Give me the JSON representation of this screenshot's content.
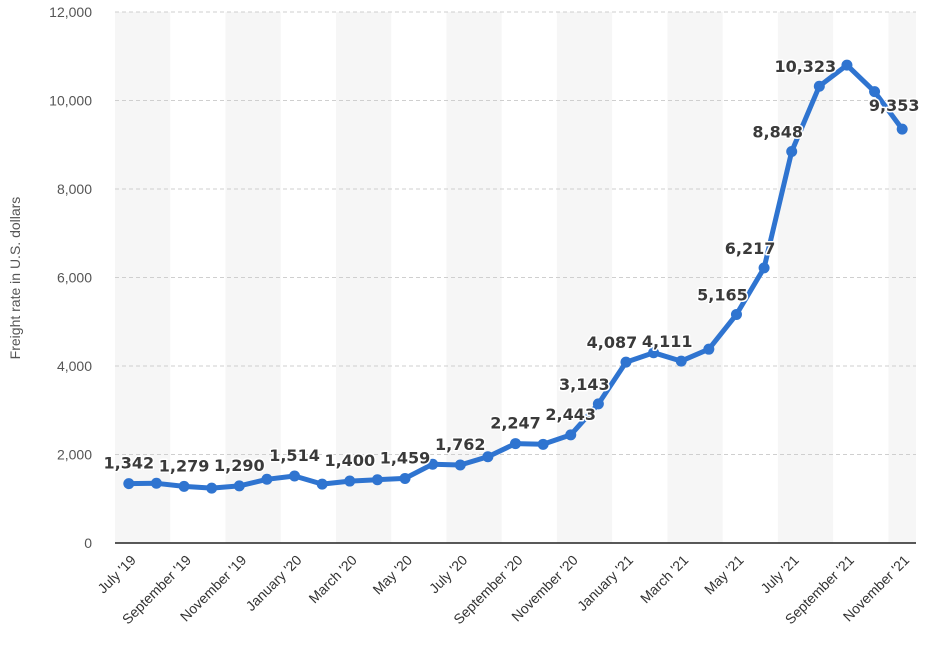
{
  "chart_data": {
    "type": "line",
    "title": "",
    "xlabel": "",
    "ylabel": "Freight rate in U.S. dollars",
    "ylim": [
      0,
      12000
    ],
    "yticks": [
      0,
      2000,
      4000,
      6000,
      8000,
      10000,
      12000
    ],
    "ytick_labels": [
      "0",
      "2,000",
      "4,000",
      "6,000",
      "8,000",
      "10,000",
      "12,000"
    ],
    "grid": "horizontal dashed",
    "x_tick_labels": [
      "July '19",
      "September '19",
      "November '19",
      "January '20",
      "March '20",
      "May '20",
      "July '20",
      "September '20",
      "November '20",
      "January '21",
      "March '21",
      "May '21",
      "July '21",
      "September '21",
      "November '21"
    ],
    "categories": [
      "Jul 2019",
      "Aug 2019",
      "Sep 2019",
      "Oct 2019",
      "Nov 2019",
      "Dec 2019",
      "Jan 2020",
      "Feb 2020",
      "Mar 2020",
      "Apr 2020",
      "May 2020",
      "Jun 2020",
      "Jul 2020",
      "Aug 2020",
      "Sep 2020",
      "Oct 2020",
      "Nov 2020",
      "Dec 2020",
      "Jan 2021",
      "Feb 2021",
      "Mar 2021",
      "Apr 2021",
      "May 2021",
      "Jun 2021",
      "Jul 2021",
      "Aug 2021",
      "Sep 2021",
      "Oct 2021",
      "Nov 2021"
    ],
    "series": [
      {
        "color": "#2f74d0",
        "values": [
          1342,
          1350,
          1279,
          1240,
          1290,
          1440,
          1514,
          1330,
          1400,
          1430,
          1459,
          1780,
          1762,
          1950,
          2247,
          2230,
          2443,
          3143,
          4087,
          4300,
          4111,
          4380,
          5165,
          6217,
          8848,
          10323,
          10800,
          10200,
          9353
        ],
        "labels": [
          "1,342",
          "",
          "1,279",
          "",
          "1,290",
          "",
          "1,514",
          "",
          "1,400",
          "",
          "1,459",
          "",
          "1,762",
          "",
          "2,247",
          "",
          "2,443",
          "3,143",
          "4,087",
          "",
          "4,111",
          "",
          "5,165",
          "6,217",
          "8,848",
          "10,323",
          "",
          "",
          "9,353"
        ]
      }
    ]
  }
}
